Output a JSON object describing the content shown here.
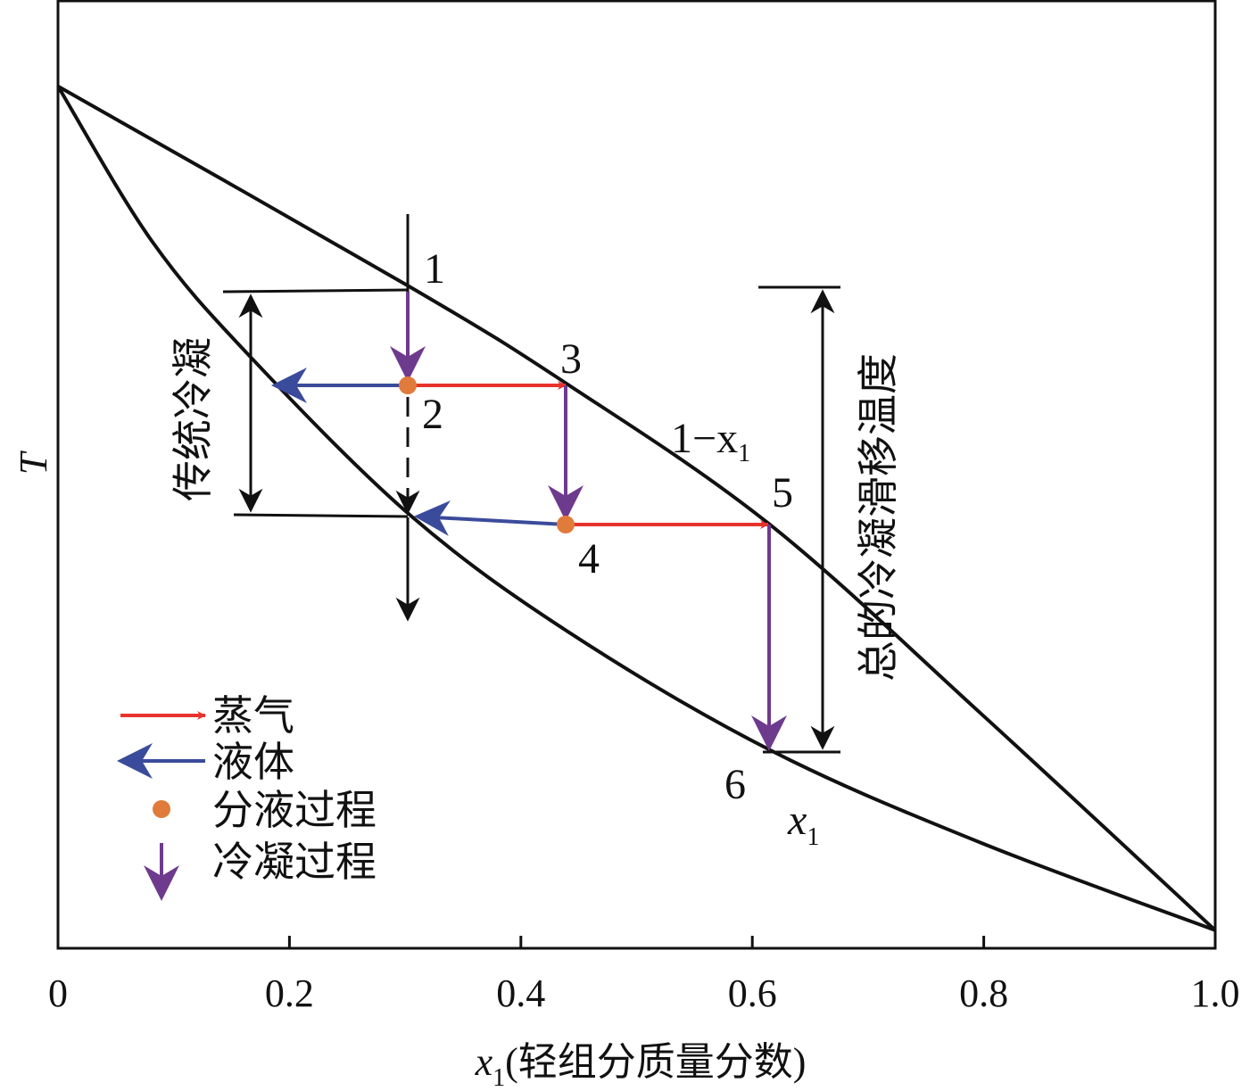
{
  "chart_data": {
    "type": "line",
    "xlabel_var": "x",
    "xlabel_sub": "1",
    "xlabel_text": "(轻组分质量分数)",
    "ylabel": "T",
    "xlim": [
      0,
      1.0
    ],
    "x_ticks": [
      "0",
      "0.2",
      "0.4",
      "0.6",
      "0.8",
      "1.0"
    ],
    "x_tick_values": [
      0,
      0.2,
      0.4,
      0.6,
      0.8,
      1.0
    ],
    "ylim": [
      0,
      100
    ],
    "series": [
      {
        "name": "dew-line",
        "label_main": "1−x",
        "label_sub": "1",
        "points": [
          [
            0,
            90.9
          ],
          [
            0.302,
            69.9
          ],
          [
            0.44,
            59.5
          ],
          [
            0.615,
            44.7
          ],
          [
            0.798,
            24.7
          ],
          [
            1,
            1.9
          ]
        ]
      },
      {
        "name": "bubble-line",
        "label_main": "x",
        "label_sub": "1",
        "points": [
          [
            0,
            90.9
          ],
          [
            0.081,
            74.6
          ],
          [
            0.166,
            62.4
          ],
          [
            0.305,
            45.6
          ],
          [
            0.443,
            33.2
          ],
          [
            0.617,
            20.8
          ],
          [
            0.798,
            11.1
          ],
          [
            1,
            1.9
          ]
        ]
      }
    ],
    "state_points": [
      "1",
      "2",
      "3",
      "4",
      "5",
      "6"
    ],
    "annotations": {
      "traditional": "传统冷凝",
      "total_glide": "总的冷凝滑移温度"
    },
    "legend": [
      {
        "label": "蒸气",
        "kind": "red-arrow"
      },
      {
        "label": "液体",
        "kind": "blue-arrow"
      },
      {
        "label": "分液过程",
        "kind": "orange-dot"
      },
      {
        "label": "冷凝过程",
        "kind": "purple-down-arrow"
      }
    ],
    "colors": {
      "vapor": "#e8332d",
      "liquid": "#3b4b9b",
      "separation": "#e07b3c",
      "condensation": "#6e3a8e"
    }
  }
}
